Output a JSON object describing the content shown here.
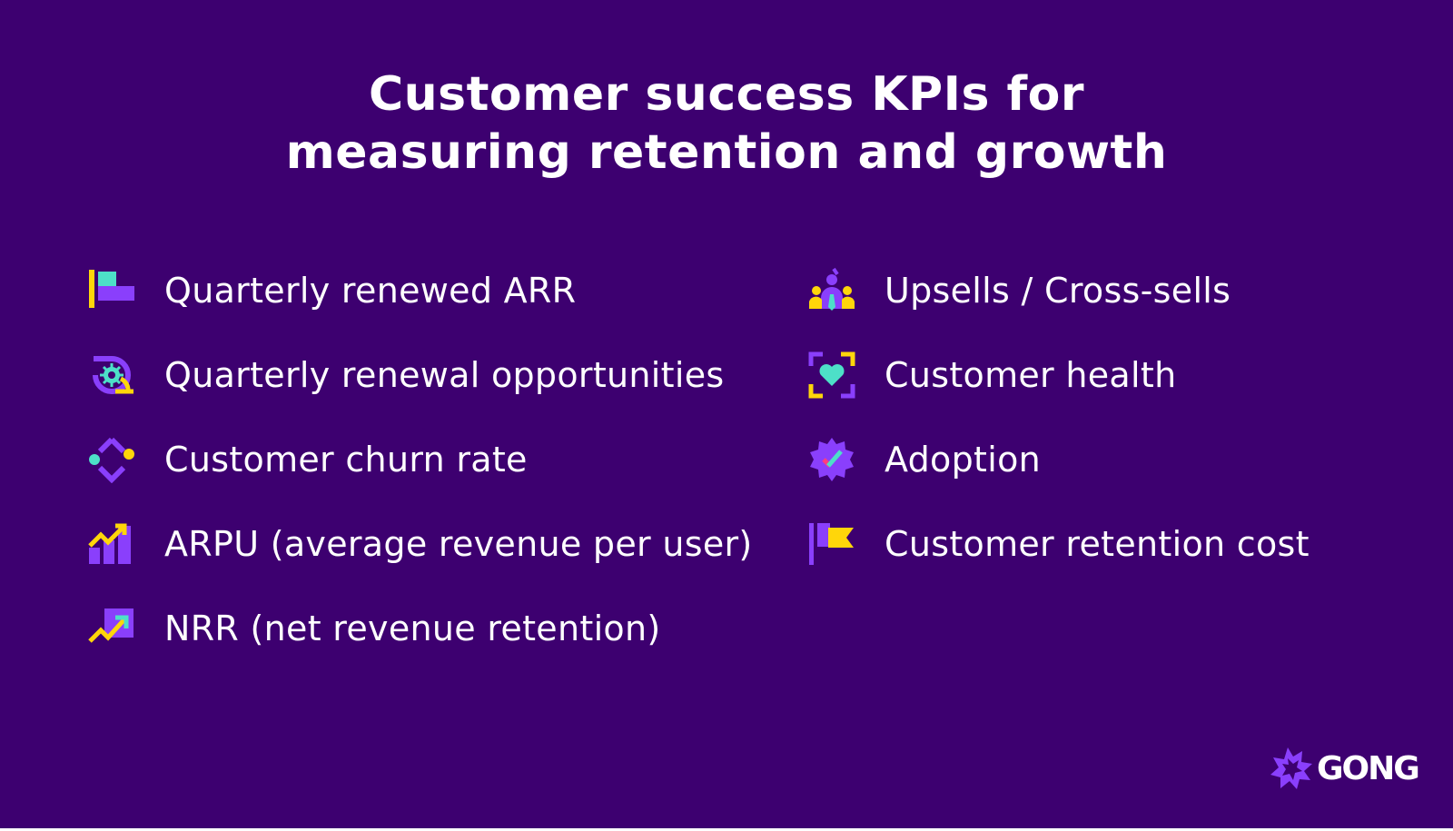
{
  "title": {
    "line1": "Customer success KPIs for",
    "line2": "measuring retention and growth"
  },
  "colors": {
    "background": "#3d0070",
    "purple": "#8a3ffc",
    "yellow": "#ffd60a",
    "teal": "#4de0c8",
    "pink": "#ff3d7f"
  },
  "kpis_left": [
    {
      "label": "Quarterly renewed ARR",
      "icon": "bar-chart-flag-icon"
    },
    {
      "label": "Quarterly renewal opportunities",
      "icon": "gear-refresh-icon"
    },
    {
      "label": "Customer churn rate",
      "icon": "diamond-dots-icon"
    },
    {
      "label": "ARPU (average revenue per user)",
      "icon": "bar-trend-up-icon"
    },
    {
      "label": "NRR (net revenue retention)",
      "icon": "trend-arrow-up-icon"
    }
  ],
  "kpis_right": [
    {
      "label": "Upsells / Cross-sells",
      "icon": "people-group-icon"
    },
    {
      "label": "Customer health",
      "icon": "heart-focus-icon"
    },
    {
      "label": "Adoption",
      "icon": "check-badge-icon"
    },
    {
      "label": "Customer retention cost",
      "icon": "flag-icon"
    }
  ],
  "logo": {
    "text": "GONG",
    "icon": "gong-burst-icon"
  }
}
